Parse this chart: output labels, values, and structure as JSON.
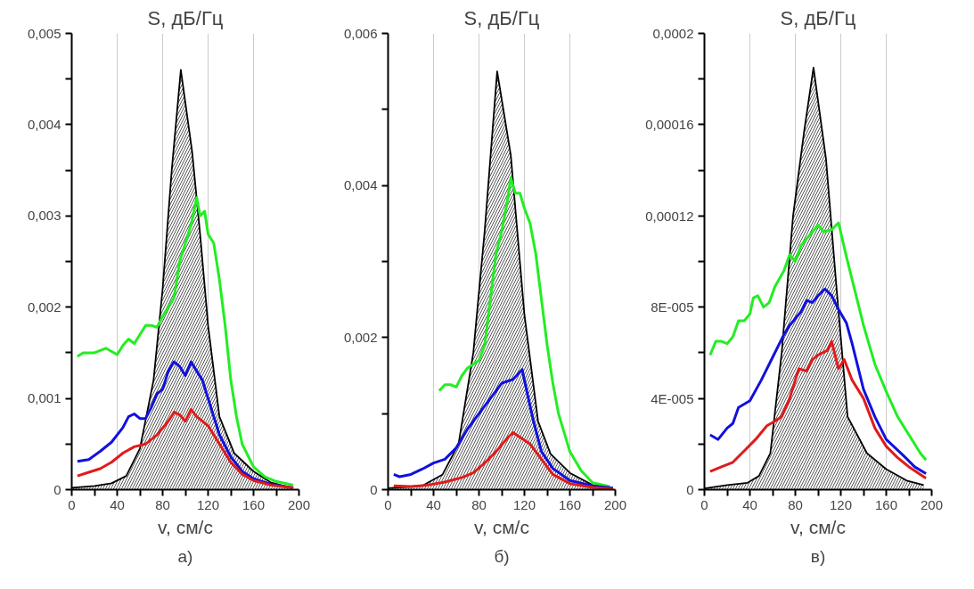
{
  "chart_data": [
    {
      "type": "line",
      "title": "S, дБ/Гц",
      "xlabel": "v, см/с",
      "annotations": [
        "а)"
      ],
      "grid": "x",
      "marker": "none",
      "line_style": "solid",
      "xlim": [
        0,
        200
      ],
      "xticks": [
        0,
        {
          "value": 20,
          "label": null
        },
        40,
        {
          "value": 60,
          "label": null
        },
        80,
        {
          "value": 100,
          "label": null
        },
        120,
        {
          "value": 140,
          "label": null
        },
        160,
        {
          "value": 180,
          "label": null
        },
        200
      ],
      "ylim": [
        0,
        0.005
      ],
      "yticks": [
        0,
        {
          "value": 0.0005,
          "label": null
        },
        {
          "value": 0.001,
          "label": "0,001"
        },
        {
          "value": 0.0015,
          "label": null
        },
        {
          "value": 0.002,
          "label": "0,002"
        },
        {
          "value": 0.0025,
          "label": null
        },
        {
          "value": 0.003,
          "label": "0,003"
        },
        {
          "value": 0.0035,
          "label": null
        },
        {
          "value": 0.004,
          "label": "0,004"
        },
        {
          "value": 0.0045,
          "label": null
        },
        {
          "value": 0.005,
          "label": "0,005"
        }
      ],
      "series": [
        {
          "type": "area",
          "color": "#000000",
          "x": [
            0,
            20,
            35,
            48,
            60,
            72,
            80,
            88,
            96,
            106,
            113,
            120,
            130,
            143,
            160,
            175,
            190,
            195
          ],
          "values": [
            2e-05,
            4e-05,
            7e-05,
            0.00015,
            0.00045,
            0.0012,
            0.0022,
            0.0035,
            0.0046,
            0.0037,
            0.0028,
            0.0018,
            0.0008,
            0.0004,
            0.0002,
            8e-05,
            3e-05,
            2e-05
          ]
        },
        {
          "color": "#22ee22",
          "x": [
            5,
            10,
            20,
            30,
            40,
            45,
            50,
            55,
            60,
            65,
            70,
            75,
            80,
            85,
            90,
            95,
            100,
            105,
            110,
            113,
            117,
            120,
            125,
            130,
            135,
            140,
            145,
            150,
            160,
            170,
            180,
            195
          ],
          "values": [
            0.00146,
            0.0015,
            0.0015,
            0.00155,
            0.00148,
            0.00158,
            0.00165,
            0.0016,
            0.0017,
            0.0018,
            0.0018,
            0.00178,
            0.0019,
            0.002,
            0.0021,
            0.0025,
            0.0027,
            0.0029,
            0.0032,
            0.003,
            0.00305,
            0.0028,
            0.0027,
            0.0023,
            0.0018,
            0.0012,
            0.0008,
            0.0005,
            0.00025,
            0.00014,
            9e-05,
            5e-05
          ]
        },
        {
          "color": "#1111dd",
          "x": [
            5,
            15,
            25,
            35,
            45,
            50,
            55,
            60,
            65,
            70,
            75,
            80,
            85,
            90,
            95,
            100,
            105,
            110,
            115,
            120,
            125,
            130,
            140,
            150,
            160,
            175,
            195
          ],
          "values": [
            0.00031,
            0.00033,
            0.00042,
            0.00052,
            0.00068,
            0.0008,
            0.00083,
            0.00078,
            0.00078,
            0.0009,
            0.00105,
            0.0011,
            0.0013,
            0.0014,
            0.00135,
            0.00125,
            0.0014,
            0.0013,
            0.0012,
            0.001,
            0.0008,
            0.0006,
            0.00036,
            0.0002,
            0.00012,
            6e-05,
            2e-05
          ]
        },
        {
          "color": "#e01b1b",
          "x": [
            5,
            15,
            25,
            35,
            45,
            55,
            65,
            75,
            85,
            90,
            95,
            100,
            105,
            110,
            115,
            120,
            130,
            140,
            150,
            160,
            175,
            195
          ],
          "values": [
            0.00015,
            0.00019,
            0.00023,
            0.0003,
            0.0004,
            0.00047,
            0.0005,
            0.0006,
            0.00075,
            0.00085,
            0.00082,
            0.00075,
            0.00088,
            0.0008,
            0.00075,
            0.0007,
            0.0005,
            0.0003,
            0.00017,
            0.0001,
            5e-05,
            2e-05
          ]
        }
      ]
    },
    {
      "type": "line",
      "title": "S, дБ/Гц",
      "xlabel": "v, см/с",
      "annotations": [
        "б)"
      ],
      "grid": "x",
      "marker": "none",
      "line_style": "solid",
      "xlim": [
        0,
        200
      ],
      "xticks": [
        0,
        {
          "value": 20,
          "label": null
        },
        40,
        {
          "value": 60,
          "label": null
        },
        80,
        {
          "value": 100,
          "label": null
        },
        120,
        {
          "value": 140,
          "label": null
        },
        160,
        {
          "value": 180,
          "label": null
        },
        200
      ],
      "ylim": [
        0,
        0.006
      ],
      "yticks": [
        0,
        {
          "value": 0.001,
          "label": null
        },
        {
          "value": 0.002,
          "label": "0,002"
        },
        {
          "value": 0.003,
          "label": null
        },
        {
          "value": 0.004,
          "label": "0,004"
        },
        {
          "value": 0.005,
          "label": null
        },
        {
          "value": 0.006,
          "label": "0,006"
        }
      ],
      "series": [
        {
          "type": "area",
          "color": "#000000",
          "x": [
            0,
            30,
            48,
            62,
            75,
            85,
            96,
            108,
            120,
            132,
            143,
            160,
            180,
            198
          ],
          "values": [
            2e-05,
            5e-05,
            0.0002,
            0.0006,
            0.0018,
            0.0034,
            0.0055,
            0.0044,
            0.0023,
            0.0009,
            0.00047,
            0.00022,
            6e-05,
            2e-05
          ]
        },
        {
          "color": "#22ee22",
          "x": [
            45,
            50,
            55,
            60,
            65,
            70,
            80,
            85,
            90,
            95,
            100,
            105,
            108,
            112,
            116,
            120,
            125,
            130,
            135,
            140,
            145,
            150,
            160,
            170,
            180,
            195
          ],
          "values": [
            0.0013,
            0.00138,
            0.00138,
            0.00135,
            0.0015,
            0.0016,
            0.0017,
            0.0019,
            0.0025,
            0.0031,
            0.0034,
            0.0038,
            0.0041,
            0.0039,
            0.0039,
            0.0037,
            0.0035,
            0.0031,
            0.0025,
            0.0019,
            0.0014,
            0.001,
            0.0005,
            0.00025,
            9e-05,
            4e-05
          ]
        },
        {
          "color": "#1111dd",
          "x": [
            5,
            10,
            20,
            30,
            40,
            50,
            60,
            70,
            80,
            90,
            100,
            110,
            118,
            122,
            128,
            135,
            145,
            160,
            180,
            198
          ],
          "values": [
            0.0002,
            0.00017,
            0.0002,
            0.00027,
            0.00035,
            0.0004,
            0.00055,
            0.0008,
            0.001,
            0.0012,
            0.0014,
            0.00145,
            0.00158,
            0.0013,
            0.0009,
            0.0005,
            0.00028,
            0.00012,
            5e-05,
            2e-05
          ]
        },
        {
          "color": "#e01b1b",
          "x": [
            5,
            20,
            35,
            50,
            65,
            75,
            85,
            95,
            105,
            110,
            115,
            125,
            135,
            145,
            160,
            180,
            198
          ],
          "values": [
            5e-05,
            4e-05,
            6e-05,
            0.0001,
            0.00016,
            0.00022,
            0.00035,
            0.0005,
            0.00068,
            0.00075,
            0.0007,
            0.0006,
            0.0004,
            0.0002,
            8e-05,
            3e-05,
            1e-05
          ]
        }
      ]
    },
    {
      "type": "line",
      "title": "S, дБ/Гц",
      "xlabel": "v, см/с",
      "annotations": [
        "в)"
      ],
      "grid": "x",
      "marker": "none",
      "line_style": "solid",
      "xlim": [
        0,
        200
      ],
      "xticks": [
        0,
        {
          "value": 20,
          "label": null
        },
        40,
        {
          "value": 60,
          "label": null
        },
        80,
        {
          "value": 100,
          "label": null
        },
        120,
        {
          "value": 140,
          "label": null
        },
        160,
        {
          "value": 180,
          "label": null
        },
        200
      ],
      "ylim": [
        0,
        0.0002
      ],
      "yticks": [
        0,
        {
          "value": 2e-05,
          "label": null
        },
        {
          "value": 4e-05,
          "label": "4E-005"
        },
        {
          "value": 6e-05,
          "label": null
        },
        {
          "value": 8e-05,
          "label": "8E-005"
        },
        {
          "value": 0.0001,
          "label": null
        },
        {
          "value": 0.00012,
          "label": "0,00012"
        },
        {
          "value": 0.00014,
          "label": null
        },
        {
          "value": 0.00016,
          "label": "0,00016"
        },
        {
          "value": 0.00018,
          "label": null
        },
        {
          "value": 0.0002,
          "label": "0,0002"
        }
      ],
      "series": [
        {
          "type": "area",
          "color": "#000000",
          "x": [
            0,
            20,
            38,
            48,
            58,
            68,
            78,
            88,
            96,
            107,
            116,
            126,
            143,
            160,
            178,
            193
          ],
          "values": [
            5e-07,
            2e-06,
            3e-06,
            6e-06,
            1.6e-05,
            6e-05,
            0.00012,
            0.000158,
            0.000185,
            0.000145,
            9e-05,
            3.2e-05,
            1.6e-05,
            9e-06,
            4e-06,
            2e-06
          ]
        },
        {
          "color": "#22ee22",
          "x": [
            5,
            10,
            15,
            20,
            25,
            30,
            35,
            40,
            43,
            47,
            52,
            57,
            62,
            70,
            75,
            80,
            85,
            90,
            95,
            100,
            105,
            112,
            118,
            125,
            130,
            140,
            150,
            160,
            170,
            180,
            190,
            195
          ],
          "values": [
            5.9e-05,
            6.5e-05,
            6.5e-05,
            6.4e-05,
            6.7e-05,
            7.4e-05,
            7.4e-05,
            7.7e-05,
            8.4e-05,
            8.5e-05,
            8e-05,
            8.2e-05,
            8.9e-05,
            9.6e-05,
            0.000103,
            0.0001,
            0.000107,
            0.00011,
            0.000113,
            0.000116,
            0.000113,
            0.000114,
            0.000117,
            0.000102,
            9.2e-05,
            7.2e-05,
            5.5e-05,
            4.3e-05,
            3.2e-05,
            2.4e-05,
            1.6e-05,
            1.3e-05
          ]
        },
        {
          "color": "#1111dd",
          "x": [
            5,
            12,
            20,
            25,
            30,
            40,
            50,
            60,
            70,
            75,
            85,
            90,
            95,
            100,
            106,
            112,
            118,
            125,
            130,
            140,
            150,
            160,
            175,
            185,
            195
          ],
          "values": [
            2.4e-05,
            2.2e-05,
            2.7e-05,
            2.9e-05,
            3.6e-05,
            3.9e-05,
            4.8e-05,
            5.8e-05,
            6.8e-05,
            7.2e-05,
            7.8e-05,
            8.3e-05,
            8.2e-05,
            8.5e-05,
            8.8e-05,
            8.5e-05,
            7.9e-05,
            7.3e-05,
            6.4e-05,
            4.4e-05,
            3.2e-05,
            2.2e-05,
            1.5e-05,
            1e-05,
            7e-06
          ]
        },
        {
          "color": "#e01b1b",
          "x": [
            5,
            15,
            25,
            35,
            45,
            55,
            62,
            68,
            75,
            83,
            90,
            95,
            100,
            108,
            112,
            118,
            123,
            130,
            140,
            150,
            160,
            170,
            180,
            195
          ],
          "values": [
            8e-06,
            1e-05,
            1.2e-05,
            1.7e-05,
            2.2e-05,
            2.8e-05,
            3e-05,
            3.2e-05,
            4e-05,
            5.3e-05,
            5.2e-05,
            5.7e-05,
            5.9e-05,
            6.1e-05,
            6.5e-05,
            5.3e-05,
            5.7e-05,
            4.8e-05,
            4e-05,
            2.7e-05,
            1.9e-05,
            1.4e-05,
            1e-05,
            5e-06
          ]
        }
      ]
    }
  ]
}
